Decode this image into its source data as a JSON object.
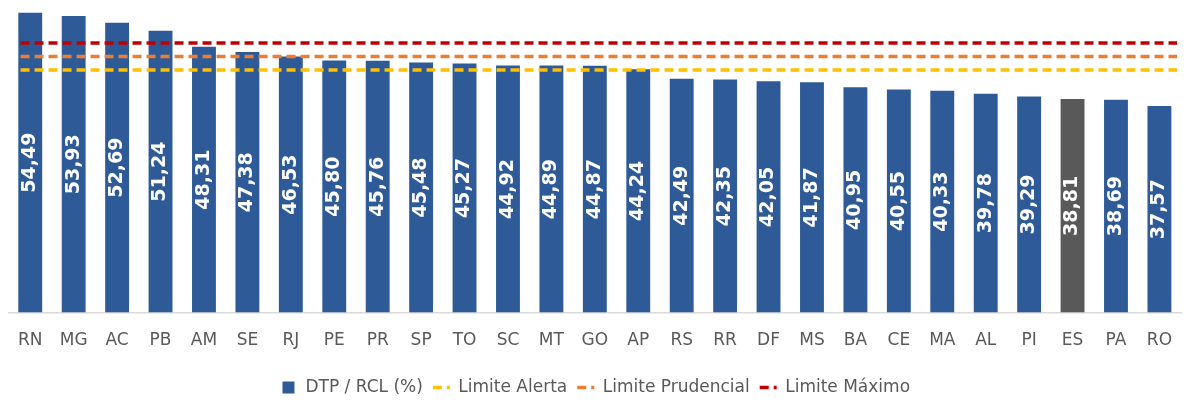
{
  "chart_data": {
    "type": "bar",
    "categories": [
      "RN",
      "MG",
      "AC",
      "PB",
      "AM",
      "SE",
      "RJ",
      "PE",
      "PR",
      "SP",
      "TO",
      "SC",
      "MT",
      "GO",
      "AP",
      "RS",
      "RR",
      "DF",
      "MS",
      "BA",
      "CE",
      "MA",
      "AL",
      "PI",
      "ES",
      "PA",
      "RO"
    ],
    "series": [
      {
        "name": "DTP / RCL (%)",
        "color": "#2e5b98",
        "colors": [
          "#2e5b98",
          "#2e5b98",
          "#2e5b98",
          "#2e5b98",
          "#2e5b98",
          "#2e5b98",
          "#2e5b98",
          "#2e5b98",
          "#2e5b98",
          "#2e5b98",
          "#2e5b98",
          "#2e5b98",
          "#2e5b98",
          "#2e5b98",
          "#2e5b98",
          "#2e5b98",
          "#2e5b98",
          "#2e5b98",
          "#2e5b98",
          "#2e5b98",
          "#2e5b98",
          "#2e5b98",
          "#2e5b98",
          "#2e5b98",
          "#595959",
          "#2e5b98",
          "#2e5b98"
        ],
        "values": [
          54.49,
          53.93,
          52.69,
          51.24,
          48.31,
          47.38,
          46.53,
          45.8,
          45.76,
          45.48,
          45.27,
          44.92,
          44.89,
          44.87,
          44.24,
          42.49,
          42.35,
          42.05,
          41.87,
          40.95,
          40.55,
          40.33,
          39.78,
          39.29,
          38.81,
          38.69,
          37.57
        ],
        "value_labels": [
          "54,49",
          "53,93",
          "52,69",
          "51,24",
          "48,31",
          "47,38",
          "46,53",
          "45,80",
          "45,76",
          "45,48",
          "45,27",
          "44,92",
          "44,89",
          "44,87",
          "44,24",
          "42,49",
          "42,35",
          "42,05",
          "41,87",
          "40,95",
          "40,55",
          "40,33",
          "39,78",
          "39,29",
          "38,81",
          "38,69",
          "37,57"
        ]
      }
    ],
    "ref_lines": [
      {
        "axis": "y",
        "value": 44.1,
        "label": "Limite Alerta",
        "color": "#ffc000",
        "line_style": "dashed"
      },
      {
        "axis": "y",
        "value": 46.55,
        "label": "Limite Prudencial",
        "color": "#ed7d31",
        "line_style": "dashed"
      },
      {
        "axis": "y",
        "value": 49,
        "label": "Limite Máximo",
        "color": "#c00000",
        "line_style": "dashed"
      }
    ],
    "ylim": [
      0,
      55
    ],
    "tick_labels": "x",
    "grid": false,
    "legend": "bottom"
  }
}
